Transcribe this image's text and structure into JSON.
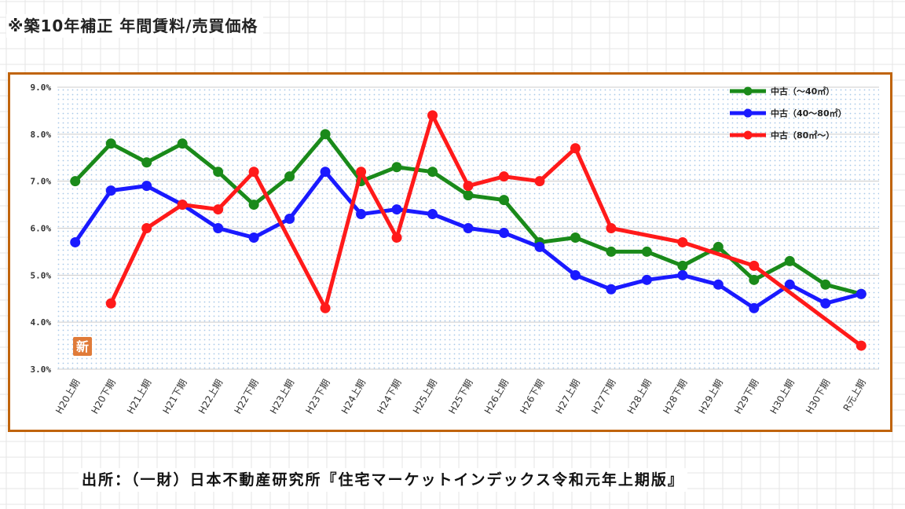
{
  "header": {
    "title": "※築10年補正 年間賃料/売買価格"
  },
  "footer": {
    "source": "出所：（一財）日本不動産研究所『住宅マーケットインデックス令和元年上期版』"
  },
  "logo": {
    "text": "新",
    "color": "#e07b39"
  },
  "colors": {
    "frame": "#c0640c",
    "plot_dots": "#a8c8e8",
    "grid": "#cccccc"
  },
  "chart_data": {
    "type": "line",
    "title": "※築10年補正 年間賃料/売買価格",
    "xlabel": "",
    "ylabel": "",
    "ylim": [
      3.0,
      9.0
    ],
    "yticks": [
      "3.0%",
      "4.0%",
      "5.0%",
      "6.0%",
      "7.0%",
      "8.0%",
      "9.0%"
    ],
    "grid": true,
    "legend_position": "top-right",
    "categories": [
      "H20上期",
      "H20下期",
      "H21上期",
      "H21下期",
      "H22上期",
      "H22下期",
      "H23上期",
      "H23下期",
      "H24上期",
      "H24下期",
      "H25上期",
      "H25下期",
      "H26上期",
      "H26下期",
      "H27上期",
      "H27下期",
      "H28上期",
      "H28下期",
      "H29上期",
      "H29下期",
      "H30上期",
      "H30下期",
      "R元上期"
    ],
    "series": [
      {
        "name": "中古（～40㎡）",
        "color": "#1a8a1a",
        "values": [
          7.0,
          7.8,
          7.4,
          7.8,
          7.2,
          6.5,
          7.1,
          8.0,
          7.0,
          7.3,
          7.2,
          6.7,
          6.6,
          5.7,
          5.8,
          5.5,
          5.5,
          5.2,
          5.6,
          4.9,
          5.3,
          4.8,
          4.6
        ]
      },
      {
        "name": "中古（40～80㎡）",
        "color": "#1a1aff",
        "values": [
          5.7,
          6.8,
          6.9,
          6.5,
          6.0,
          5.8,
          6.2,
          7.2,
          6.3,
          6.4,
          6.3,
          6.0,
          5.9,
          5.6,
          5.0,
          4.7,
          4.9,
          5.0,
          4.8,
          4.3,
          4.8,
          4.4,
          4.6
        ]
      },
      {
        "name": "中古（80㎡～）",
        "color": "#ff1a1a",
        "values": [
          null,
          4.4,
          6.0,
          6.5,
          6.4,
          7.2,
          null,
          4.3,
          7.2,
          5.8,
          8.4,
          6.9,
          7.1,
          7.0,
          7.7,
          6.0,
          null,
          5.7,
          null,
          5.2,
          null,
          null,
          3.5
        ]
      }
    ]
  }
}
